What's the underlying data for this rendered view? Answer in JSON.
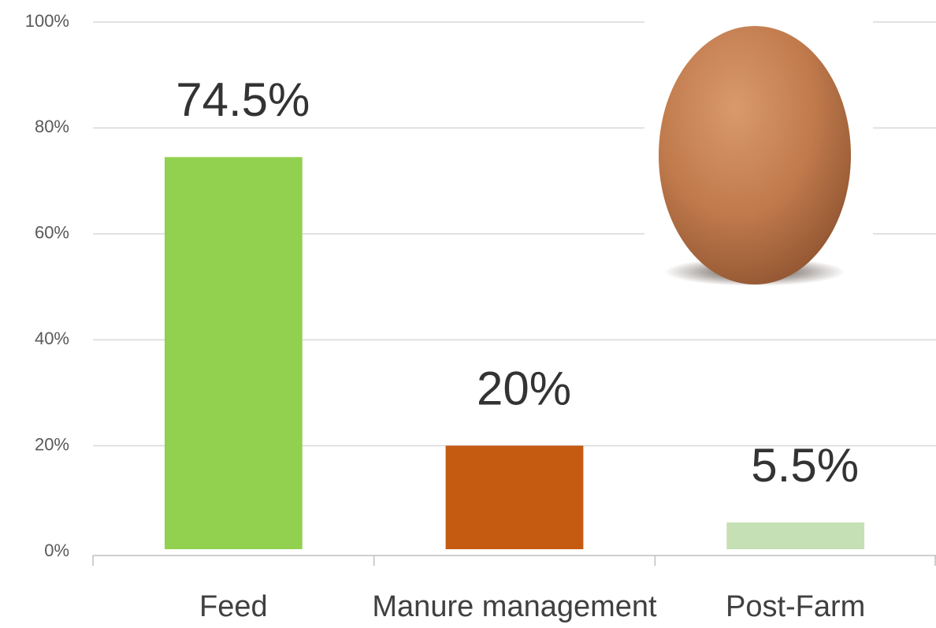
{
  "chart_data": {
    "type": "bar",
    "categories": [
      "Feed",
      "Manure management",
      "Post-Farm"
    ],
    "values": [
      74.5,
      20,
      5.5
    ],
    "value_labels": [
      "74.5%",
      "20%",
      "5.5%"
    ],
    "colors": [
      "#92d050",
      "#c55a11",
      "#c5e0b4"
    ],
    "ylim": [
      0,
      100
    ],
    "yticks": [
      {
        "value": 0,
        "label": "0%"
      },
      {
        "value": 20,
        "label": "20%"
      },
      {
        "value": 40,
        "label": "40%"
      },
      {
        "value": 60,
        "label": "60%"
      },
      {
        "value": 80,
        "label": "80%"
      },
      {
        "value": 100,
        "label": "100%"
      }
    ],
    "grid": true
  }
}
